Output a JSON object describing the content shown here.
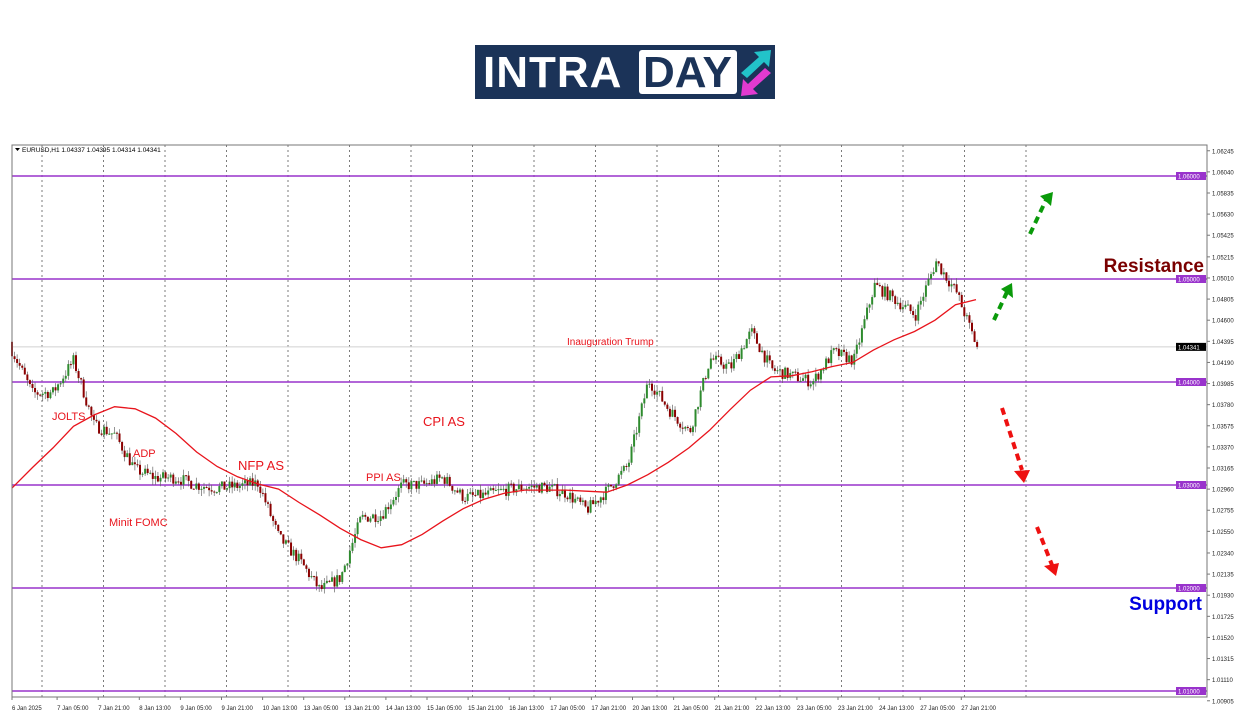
{
  "logo": {
    "text_part1": "INTRA",
    "text_part2": "DAY",
    "bg_color": "#1b3358",
    "arrow_up_color": "#22c3c9",
    "arrow_down_color": "#e23ad0"
  },
  "chart_header": {
    "symbol_info": "EURUSD,H1  1.04337 1.04395 1.04314 1.04341"
  },
  "chart_data": {
    "type": "candlestick",
    "symbol": "EURUSD",
    "timeframe": "H1",
    "ohlc_last": {
      "open": 1.04337,
      "high": 1.04395,
      "low": 1.04314,
      "close": 1.04341
    },
    "current_price_label": "1.04341",
    "ylim": [
      1.00905,
      1.0635
    ],
    "y_ticks": [
      "1.06245",
      "1.06040",
      "1.05835",
      "1.05630",
      "1.05425",
      "1.05215",
      "1.05010",
      "1.04805",
      "1.04600",
      "1.04395",
      "1.04190",
      "1.03985",
      "1.03780",
      "1.03575",
      "1.03370",
      "1.03165",
      "1.02960",
      "1.02755",
      "1.02550",
      "1.02340",
      "1.02135",
      "1.01930",
      "1.01725",
      "1.01520",
      "1.01315",
      "1.01110",
      "1.00905"
    ],
    "x_ticks": [
      "6 Jan 2025",
      "7 Jan 05:00",
      "7 Jan 21:00",
      "8 Jan 13:00",
      "9 Jan 05:00",
      "9 Jan 21:00",
      "10 Jan 13:00",
      "13 Jan 05:00",
      "13 Jan 21:00",
      "14 Jan 13:00",
      "15 Jan 05:00",
      "15 Jan 21:00",
      "16 Jan 13:00",
      "17 Jan 05:00",
      "17 Jan 21:00",
      "20 Jan 13:00",
      "21 Jan 05:00",
      "21 Jan 21:00",
      "22 Jan 13:00",
      "23 Jan 05:00",
      "23 Jan 21:00",
      "24 Jan 13:00",
      "27 Jan 05:00",
      "27 Jan 21:00"
    ],
    "grid": "vertical-dotted",
    "close_path": [
      1.0431,
      1.0389,
      1.039,
      1.0421,
      1.0358,
      1.0349,
      1.0315,
      1.0307,
      1.0307,
      1.03,
      1.0297,
      1.0299,
      1.0302,
      1.0249,
      1.0227,
      1.0198,
      1.021,
      1.0268,
      1.0271,
      1.03,
      1.03,
      1.0307,
      1.0288,
      1.029,
      1.0295,
      1.0298,
      1.0298,
      1.0292,
      1.0276,
      1.0295,
      1.0319,
      1.0402,
      1.0373,
      1.0351,
      1.0423,
      1.0414,
      1.0449,
      1.0412,
      1.0406,
      1.04,
      1.0429,
      1.0421,
      1.0494,
      1.048,
      1.0465,
      1.0517,
      1.0487,
      1.04341
    ],
    "moving_average": [
      1.0297,
      1.0317,
      1.0336,
      1.0357,
      1.0368,
      1.0376,
      1.0374,
      1.0365,
      1.035,
      1.0332,
      1.0318,
      1.0308,
      1.0301,
      1.0296,
      1.0283,
      1.0271,
      1.0258,
      1.0247,
      1.0239,
      1.0242,
      1.0252,
      1.0265,
      1.0277,
      1.0286,
      1.0292,
      1.0295,
      1.0295,
      1.0295,
      1.0294,
      1.0293,
      1.03,
      1.031,
      1.0322,
      1.0336,
      1.0353,
      1.0373,
      1.0392,
      1.0405,
      1.0406,
      1.041,
      1.0415,
      1.0419,
      1.0431,
      1.0441,
      1.0449,
      1.046,
      1.0475,
      1.048
    ],
    "levels": [
      {
        "price": 1.06,
        "label": "1.06000"
      },
      {
        "price": 1.05,
        "label": "1.05000"
      },
      {
        "price": 1.04,
        "label": "1.04000"
      },
      {
        "price": 1.03,
        "label": "1.03000"
      },
      {
        "price": 1.02,
        "label": "1.02000"
      },
      {
        "price": 1.01,
        "label": "1.01000"
      }
    ],
    "annotations": [
      {
        "text": "JOLTS",
        "near_price": 1.0375
      },
      {
        "text": "ADP",
        "near_price": 1.034
      },
      {
        "text": "Minit FOMC",
        "near_price": 1.0265
      },
      {
        "text": "NFP AS",
        "near_price": 1.032
      },
      {
        "text": "PPI AS",
        "near_price": 1.031
      },
      {
        "text": "CPI AS",
        "near_price": 1.036
      },
      {
        "text": "Inauguration Trump",
        "near_price": 1.0438
      }
    ],
    "zone_labels": {
      "resistance": "Resistance",
      "support": "Support"
    },
    "colors": {
      "bull": "#2e8b2e",
      "bear": "#8b0000",
      "ma": "#e8141c",
      "level": "#9933cc",
      "resistance": "#7a0000",
      "support": "#0000e0",
      "arrow_up": "#0a9a0a",
      "arrow_down": "#ee1111"
    }
  }
}
